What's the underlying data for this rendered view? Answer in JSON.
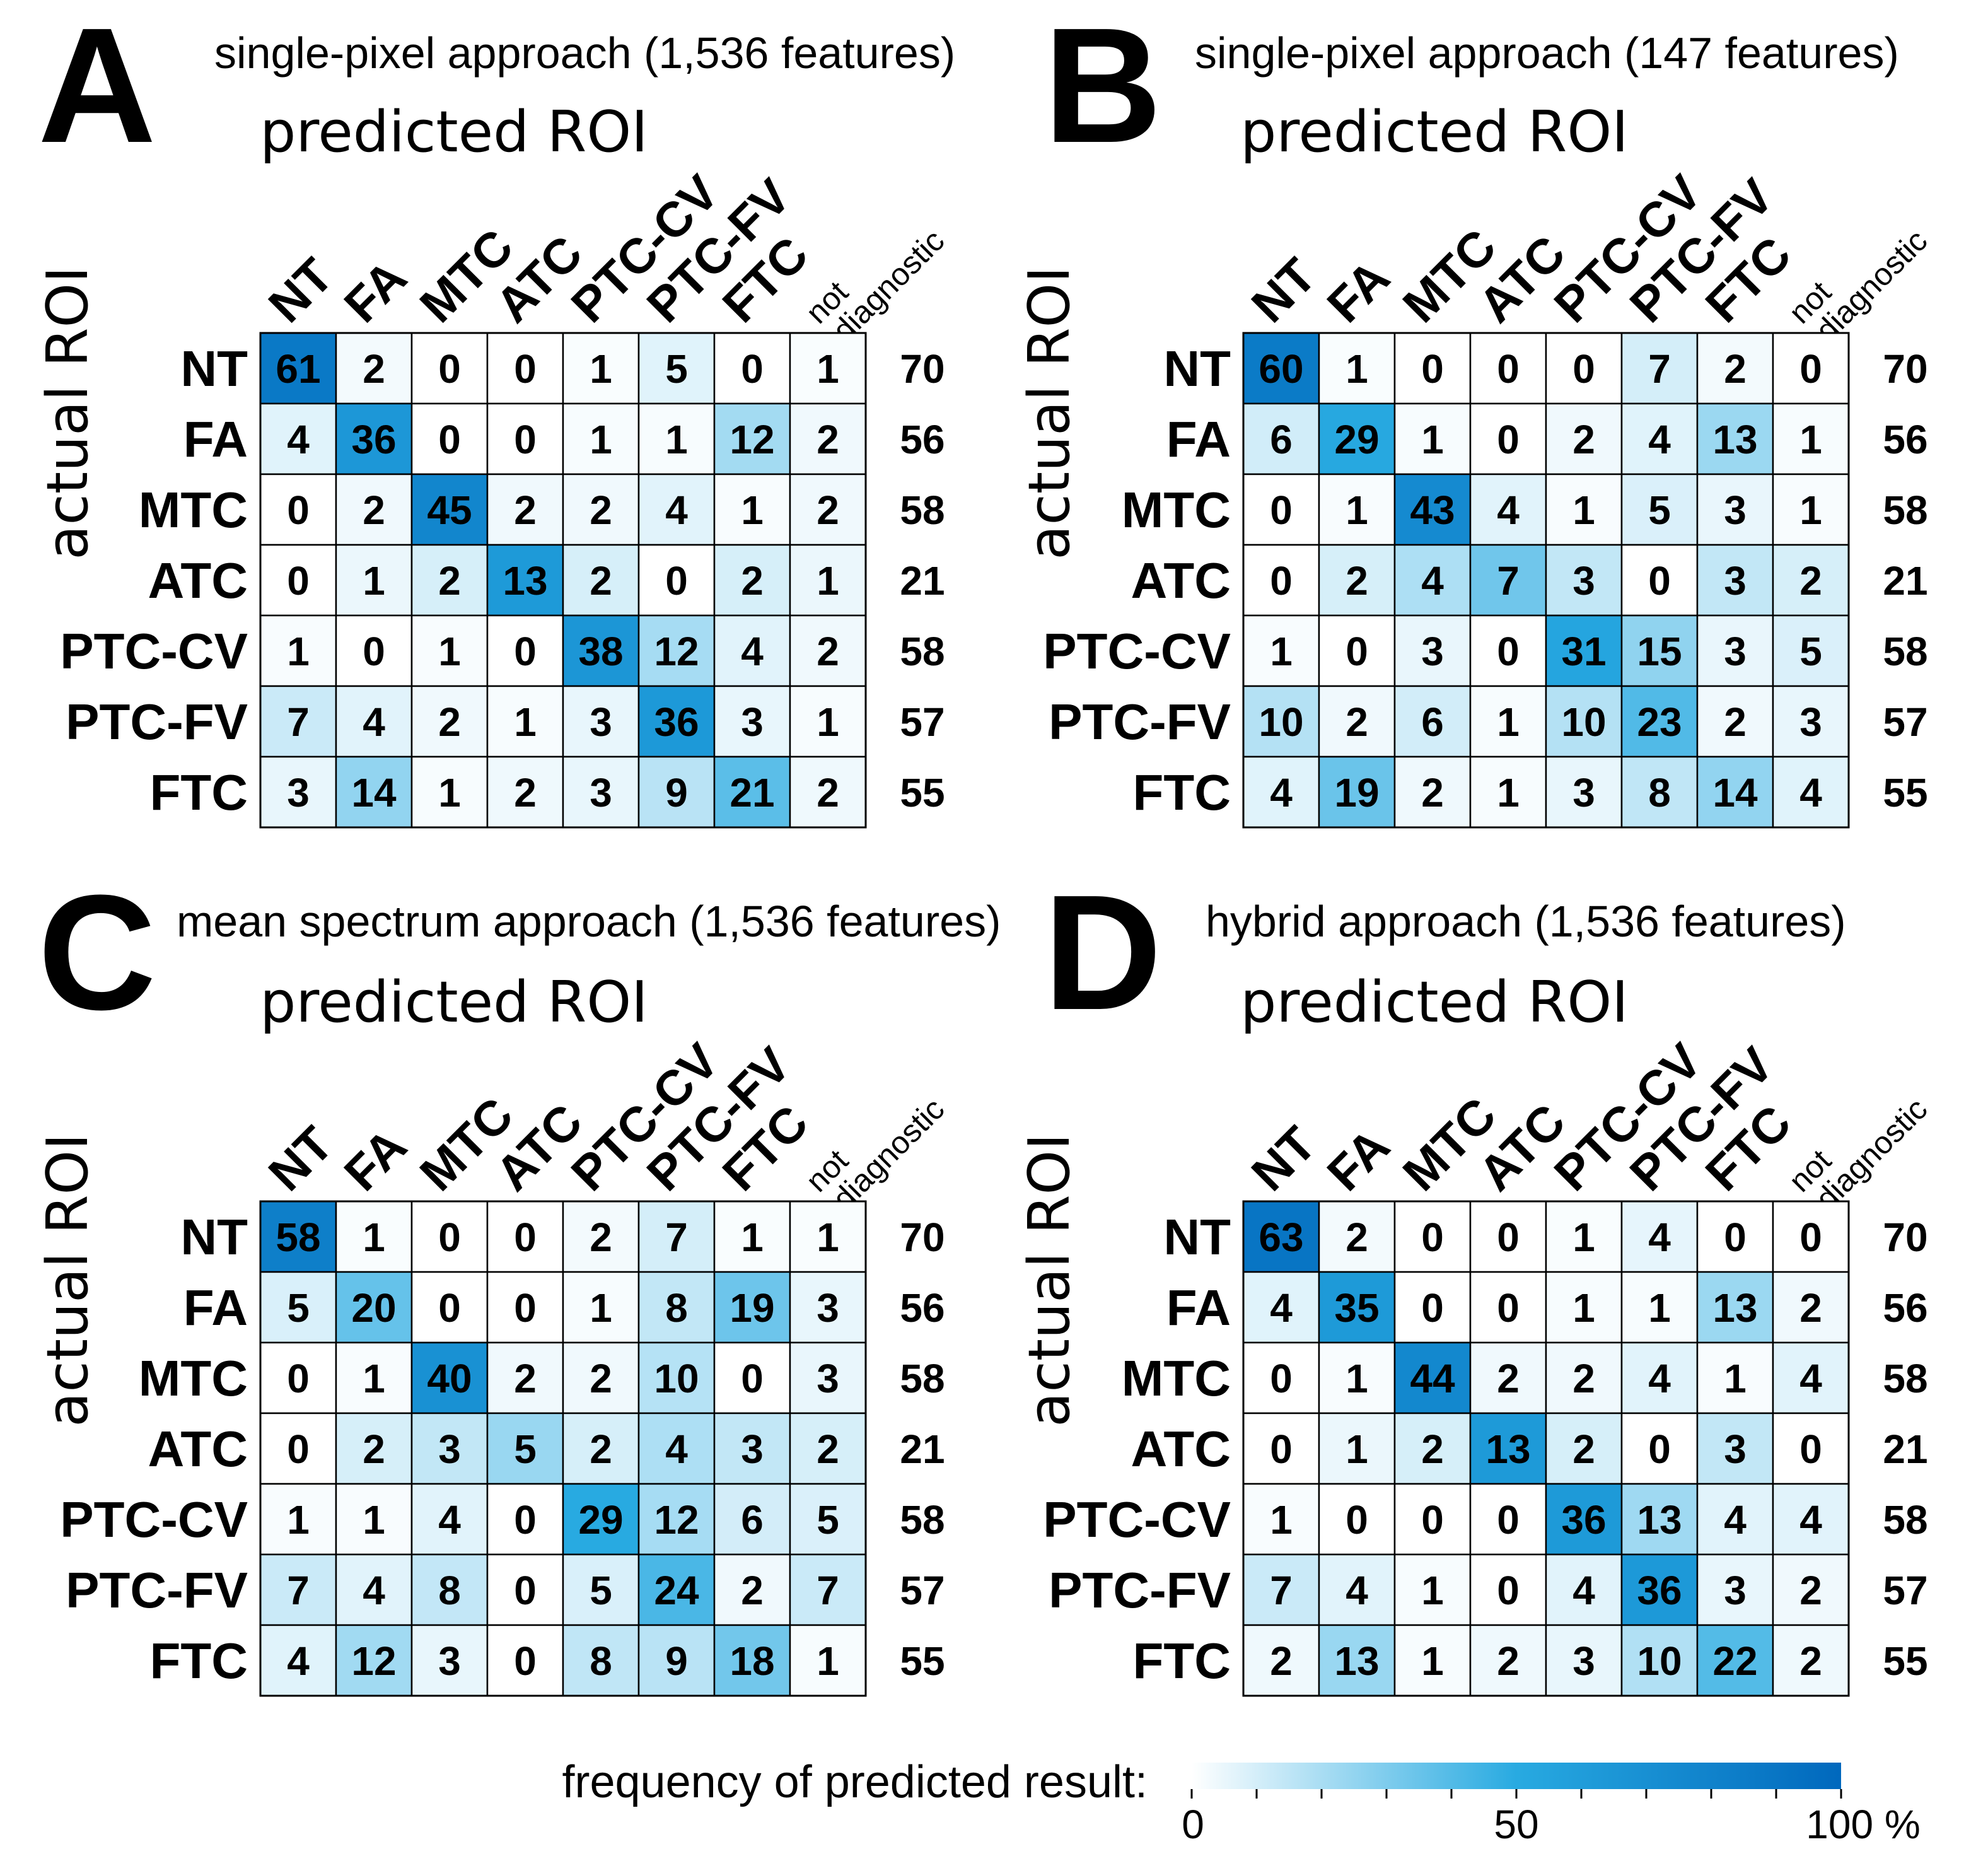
{
  "chart_data": [
    {
      "type": "heatmap",
      "panel": "A",
      "title": "single-pixel approach (1,536 features)",
      "xlabel": "predicted ROI",
      "ylabel": "actual ROI",
      "columns": [
        "NT",
        "FA",
        "MTC",
        "ATC",
        "PTC-CV",
        "PTC-FV",
        "FTC",
        "not diagnostic"
      ],
      "rows": [
        "NT",
        "FA",
        "MTC",
        "ATC",
        "PTC-CV",
        "PTC-FV",
        "FTC"
      ],
      "values": [
        [
          61,
          2,
          0,
          0,
          1,
          5,
          0,
          1
        ],
        [
          4,
          36,
          0,
          0,
          1,
          1,
          12,
          2
        ],
        [
          0,
          2,
          45,
          2,
          2,
          4,
          1,
          2
        ],
        [
          0,
          1,
          2,
          13,
          2,
          0,
          2,
          1
        ],
        [
          1,
          0,
          1,
          0,
          38,
          12,
          4,
          2
        ],
        [
          7,
          4,
          2,
          1,
          3,
          36,
          3,
          1
        ],
        [
          3,
          14,
          1,
          2,
          3,
          9,
          21,
          2
        ]
      ],
      "row_totals": [
        70,
        56,
        58,
        21,
        58,
        57,
        55
      ]
    },
    {
      "type": "heatmap",
      "panel": "B",
      "title": "single-pixel approach (147 features)",
      "xlabel": "predicted ROI",
      "ylabel": "actual ROI",
      "columns": [
        "NT",
        "FA",
        "MTC",
        "ATC",
        "PTC-CV",
        "PTC-FV",
        "FTC",
        "not diagnostic"
      ],
      "rows": [
        "NT",
        "FA",
        "MTC",
        "ATC",
        "PTC-CV",
        "PTC-FV",
        "FTC"
      ],
      "values": [
        [
          60,
          1,
          0,
          0,
          0,
          7,
          2,
          0
        ],
        [
          6,
          29,
          1,
          0,
          2,
          4,
          13,
          1
        ],
        [
          0,
          1,
          43,
          4,
          1,
          5,
          3,
          1
        ],
        [
          0,
          2,
          4,
          7,
          3,
          0,
          3,
          2
        ],
        [
          1,
          0,
          3,
          0,
          31,
          15,
          3,
          5
        ],
        [
          10,
          2,
          6,
          1,
          10,
          23,
          2,
          3
        ],
        [
          4,
          19,
          2,
          1,
          3,
          8,
          14,
          4
        ]
      ],
      "row_totals": [
        70,
        56,
        58,
        21,
        58,
        57,
        55
      ]
    },
    {
      "type": "heatmap",
      "panel": "C",
      "title": "mean spectrum approach (1,536 features)",
      "xlabel": "predicted ROI",
      "ylabel": "actual ROI",
      "columns": [
        "NT",
        "FA",
        "MTC",
        "ATC",
        "PTC-CV",
        "PTC-FV",
        "FTC",
        "not diagnostic"
      ],
      "rows": [
        "NT",
        "FA",
        "MTC",
        "ATC",
        "PTC-CV",
        "PTC-FV",
        "FTC"
      ],
      "values": [
        [
          58,
          1,
          0,
          0,
          2,
          7,
          1,
          1
        ],
        [
          5,
          20,
          0,
          0,
          1,
          8,
          19,
          3
        ],
        [
          0,
          1,
          40,
          2,
          2,
          10,
          0,
          3
        ],
        [
          0,
          2,
          3,
          5,
          2,
          4,
          3,
          2
        ],
        [
          1,
          1,
          4,
          0,
          29,
          12,
          6,
          5
        ],
        [
          7,
          4,
          8,
          0,
          5,
          24,
          2,
          7
        ],
        [
          4,
          12,
          3,
          0,
          8,
          9,
          18,
          1
        ]
      ],
      "row_totals": [
        70,
        56,
        58,
        21,
        58,
        57,
        55
      ]
    },
    {
      "type": "heatmap",
      "panel": "D",
      "title": "hybrid approach (1,536 features)",
      "xlabel": "predicted ROI",
      "ylabel": "actual ROI",
      "columns": [
        "NT",
        "FA",
        "MTC",
        "ATC",
        "PTC-CV",
        "PTC-FV",
        "FTC",
        "not diagnostic"
      ],
      "rows": [
        "NT",
        "FA",
        "MTC",
        "ATC",
        "PTC-CV",
        "PTC-FV",
        "FTC"
      ],
      "values": [
        [
          63,
          2,
          0,
          0,
          1,
          4,
          0,
          0
        ],
        [
          4,
          35,
          0,
          0,
          1,
          1,
          13,
          2
        ],
        [
          0,
          1,
          44,
          2,
          2,
          4,
          1,
          4
        ],
        [
          0,
          1,
          2,
          13,
          2,
          0,
          3,
          0
        ],
        [
          1,
          0,
          0,
          0,
          36,
          13,
          4,
          4
        ],
        [
          7,
          4,
          1,
          0,
          4,
          36,
          3,
          2
        ],
        [
          2,
          13,
          1,
          2,
          3,
          10,
          22,
          2
        ]
      ],
      "row_totals": [
        70,
        56,
        58,
        21,
        58,
        57,
        55
      ]
    }
  ],
  "colorbar": {
    "label": "frequency of predicted result:",
    "min_label": "0",
    "mid_label": "50",
    "max_label": "100 %",
    "range": [
      0,
      100
    ],
    "color_low": "#ffffff",
    "color_high": "#0068bd"
  }
}
